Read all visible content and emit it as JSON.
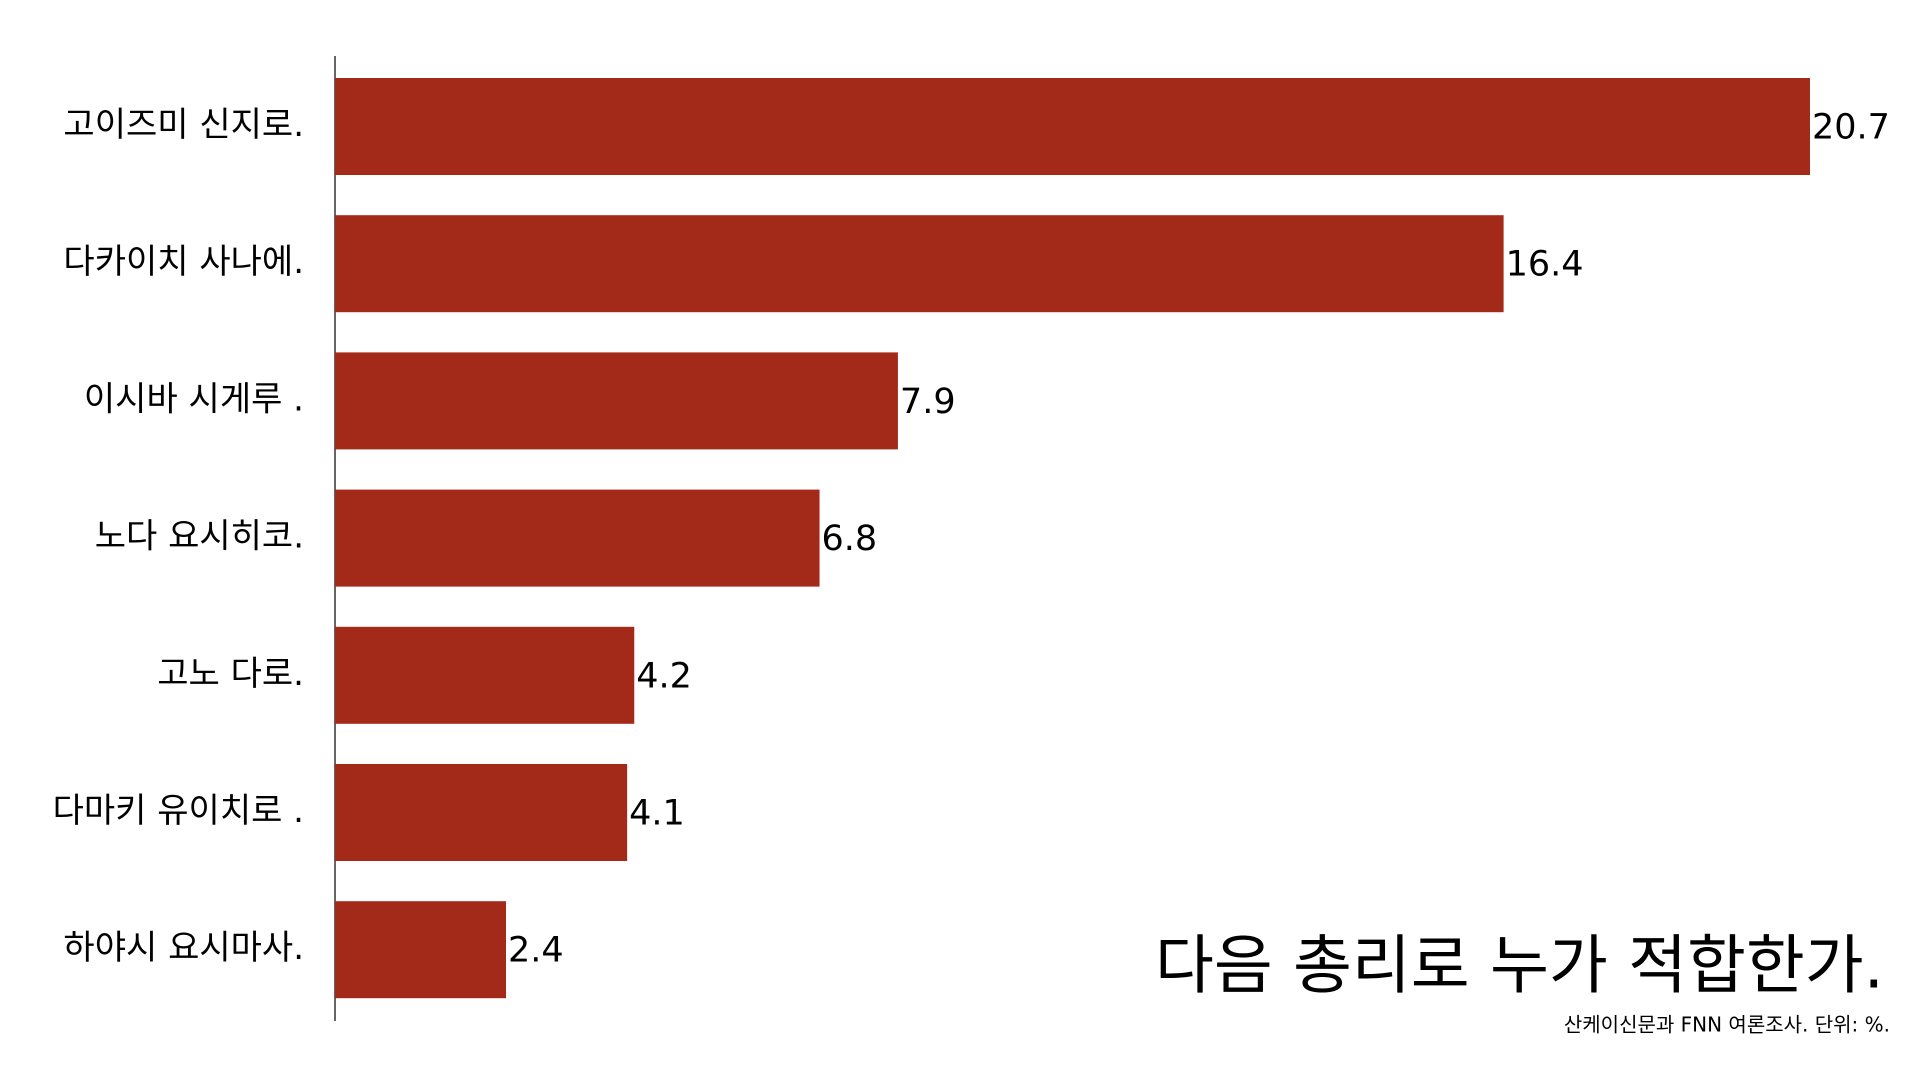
{
  "chart_data": {
    "type": "hbar",
    "title": "다음 총리로 누가 적합한가.",
    "subtitle": "산케이신문과 FNN 여론조사. 단위: %.",
    "categories": [
      "고이즈미 신지로.",
      "다카이치 사나에.",
      "이시바 시게루 .",
      "노다 요시히코.",
      "고노 다로.",
      "다마키 유이치로 .",
      "하야시 요시마사."
    ],
    "values": [
      20.7,
      16.4,
      7.9,
      6.8,
      4.2,
      4.1,
      2.4
    ],
    "color": "#a32a18"
  }
}
